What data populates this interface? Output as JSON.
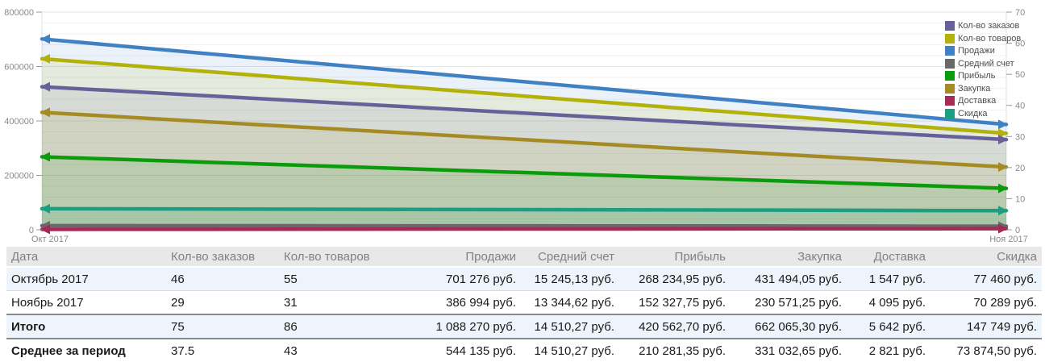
{
  "chart_data": {
    "type": "area",
    "title": "",
    "x": [
      "Окт 2017",
      "Ноя 2017"
    ],
    "left_axis": {
      "range": [
        0,
        800000
      ],
      "ticks": [
        "0",
        "200000",
        "400000",
        "600000",
        "800000"
      ],
      "minor_step": 40000
    },
    "right_axis": {
      "range": [
        0,
        70
      ],
      "ticks": [
        "0",
        "10",
        "20",
        "30",
        "40",
        "50",
        "60",
        "70"
      ]
    },
    "grid": true,
    "legend_position": "top-right-inside",
    "series": [
      {
        "name": "Кол-во заказов",
        "axis": "right",
        "color": "#686098",
        "values": [
          46,
          29
        ]
      },
      {
        "name": "Кол-во товаров",
        "axis": "right",
        "color": "#b2b20a",
        "values": [
          55,
          31
        ]
      },
      {
        "name": "Продажи",
        "axis": "left",
        "color": "#4081c4",
        "values": [
          701276,
          386994
        ]
      },
      {
        "name": "Средний счет",
        "axis": "left",
        "color": "#696969",
        "values": [
          15245.13,
          13344.62
        ]
      },
      {
        "name": "Прибыль",
        "axis": "left",
        "color": "#0b9b0b",
        "values": [
          268234.95,
          152327.75
        ]
      },
      {
        "name": "Закупка",
        "axis": "left",
        "color": "#a68b25",
        "values": [
          431494.05,
          230571.25
        ]
      },
      {
        "name": "Доставка",
        "axis": "left",
        "color": "#a52b55",
        "values": [
          1547,
          4095
        ]
      },
      {
        "name": "Скидка",
        "axis": "left",
        "color": "#1c9e83",
        "values": [
          77460,
          70289
        ]
      }
    ]
  },
  "table": {
    "columns": [
      {
        "label": "Дата",
        "align": "left"
      },
      {
        "label": "Кол-во заказов",
        "align": "left"
      },
      {
        "label": "Кол-во товаров",
        "align": "left"
      },
      {
        "label": "Продажи",
        "align": "right"
      },
      {
        "label": "Средний счет",
        "align": "right"
      },
      {
        "label": "Прибыль",
        "align": "right"
      },
      {
        "label": "Закупка",
        "align": "right"
      },
      {
        "label": "Доставка",
        "align": "right"
      },
      {
        "label": "Скидка",
        "align": "right"
      }
    ],
    "rows": [
      {
        "cells": [
          "Октябрь 2017",
          "46",
          "55",
          "701 276 руб.",
          "15 245,13 руб.",
          "268 234,95 руб.",
          "431 494,05 руб.",
          "1 547 руб.",
          "77 460 руб."
        ],
        "striped": true,
        "summary": false
      },
      {
        "cells": [
          "Ноябрь 2017",
          "29",
          "31",
          "386 994 руб.",
          "13 344,62 руб.",
          "152 327,75 руб.",
          "230 571,25 руб.",
          "4 095 руб.",
          "70 289 руб."
        ],
        "striped": false,
        "summary": false
      },
      {
        "cells": [
          "Итого",
          "75",
          "86",
          "1 088 270 руб.",
          "14 510,27 руб.",
          "420 562,70 руб.",
          "662 065,30 руб.",
          "5 642 руб.",
          "147 749 руб."
        ],
        "striped": true,
        "summary": true
      },
      {
        "cells": [
          "Среднее за период",
          "37.5",
          "43",
          "544 135 руб.",
          "14 510,27 руб.",
          "210 281,35 руб.",
          "331 032,65 руб.",
          "2 821 руб.",
          "73 874,50 руб."
        ],
        "striped": false,
        "summary": true
      }
    ]
  },
  "colors": {
    "grid_minor": "#f2f2f2",
    "grid_major": "#e6e6e6",
    "axis_line": "#e0e0e0",
    "axis_text": "#8a8a8a",
    "tick": "#999999",
    "row_highlight": "#edf4fb"
  }
}
